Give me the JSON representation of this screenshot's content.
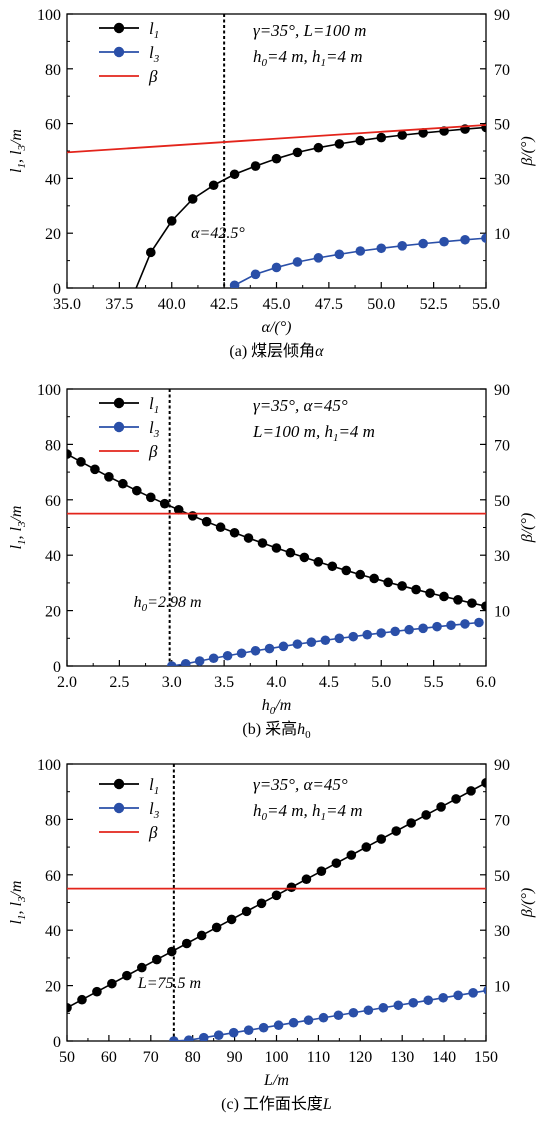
{
  "chart_data": [
    {
      "type": "line",
      "caption_prefix": "(a) 煤层倾角",
      "caption_var": "α",
      "xlabel": "α/(°)",
      "ylabel_left": "l1, l3/m",
      "ylabel_right": "β/(°)",
      "xlim": [
        35,
        55
      ],
      "ylim_left": [
        0,
        100
      ],
      "ylim_right": [
        -10,
        90
      ],
      "xticks": [
        "35.0",
        "37.5",
        "40.0",
        "42.5",
        "45.0",
        "47.5",
        "50.0",
        "52.5",
        "55.0"
      ],
      "yticks_left": [
        "0",
        "20",
        "40",
        "60",
        "80",
        "100"
      ],
      "yticks_right": [
        "10",
        "30",
        "50",
        "70",
        "90"
      ],
      "legend": [
        "l1",
        "l3",
        "β"
      ],
      "params": [
        "γ=35°, L=100 m",
        "h0=4 m, h1=4 m"
      ],
      "vline": {
        "x": 42.5,
        "label": "α=42.5°"
      },
      "series": [
        {
          "name": "l1",
          "color": "#000000",
          "x_start": 39.0,
          "x_step": 1.0,
          "values": [
            13.0,
            24.5,
            32.5,
            37.5,
            41.5,
            44.5,
            47.2,
            49.5,
            51.2,
            52.6,
            53.8,
            54.9,
            55.8,
            56.6,
            57.3,
            58.0,
            58.6
          ]
        },
        {
          "name": "l3",
          "color": "#2a4fa8",
          "x_start": 43.0,
          "x_step": 1.0,
          "values": [
            1.0,
            5.0,
            7.5,
            9.5,
            11.0,
            12.3,
            13.5,
            14.5,
            15.4,
            16.2,
            16.9,
            17.6,
            18.2
          ]
        },
        {
          "name": "β",
          "color": "#e3241b",
          "x": [
            35,
            55
          ],
          "values": [
            39.5,
            49.5
          ]
        }
      ],
      "l1_origin": {
        "x": 38.3,
        "y": 0
      }
    },
    {
      "type": "line",
      "caption_prefix": "(b) 采高",
      "caption_var": "h0",
      "xlabel": "h0/m",
      "ylabel_left": "l1, l3/m",
      "ylabel_right": "β/(°)",
      "xlim": [
        2,
        6
      ],
      "ylim_left": [
        0,
        100
      ],
      "ylim_right": [
        -10,
        90
      ],
      "xticks": [
        "2.0",
        "2.5",
        "3.0",
        "3.5",
        "4.0",
        "4.5",
        "5.0",
        "5.5",
        "6.0"
      ],
      "yticks_left": [
        "0",
        "20",
        "40",
        "60",
        "80",
        "100"
      ],
      "yticks_right": [
        "10",
        "30",
        "50",
        "70",
        "90"
      ],
      "legend": [
        "l1",
        "l3",
        "β"
      ],
      "params": [
        "γ=35°, α=45°",
        "L=100 m, h1=4 m"
      ],
      "vline": {
        "x": 2.98,
        "label": "h0=2.98 m"
      },
      "series": [
        {
          "name": "l1",
          "color": "#000000",
          "x_start": 2.0,
          "x_step": 0.1333,
          "values": [
            76.5,
            73.7,
            71.0,
            68.3,
            65.8,
            63.3,
            60.9,
            58.6,
            56.4,
            54.2,
            52.1,
            50.1,
            48.1,
            46.2,
            44.4,
            42.6,
            40.9,
            39.2,
            37.6,
            36.0,
            34.5,
            33.0,
            31.6,
            30.2,
            28.9,
            27.6,
            26.3,
            25.1,
            23.9,
            22.7,
            21.6
          ]
        },
        {
          "name": "l3",
          "color": "#2a4fa8",
          "x_start": 3.0,
          "x_step": 0.1333,
          "values": [
            0.0,
            0.8,
            1.8,
            2.8,
            3.7,
            4.6,
            5.5,
            6.3,
            7.1,
            7.9,
            8.6,
            9.3,
            10.0,
            10.6,
            11.3,
            11.9,
            12.5,
            13.1,
            13.6,
            14.2,
            14.7,
            15.2,
            15.7
          ]
        },
        {
          "name": "β",
          "color": "#e3241b",
          "x": [
            2,
            6
          ],
          "values": [
            45,
            45
          ]
        }
      ]
    },
    {
      "type": "line",
      "caption_prefix": "(c) 工作面长度",
      "caption_var": "L",
      "xlabel": "L/m",
      "ylabel_left": "l1, l3/m",
      "ylabel_right": "β/(°)",
      "xlim": [
        50,
        150
      ],
      "ylim_left": [
        0,
        100
      ],
      "ylim_right": [
        -10,
        90
      ],
      "xticks": [
        "50",
        "60",
        "70",
        "80",
        "90",
        "100",
        "110",
        "120",
        "130",
        "140",
        "150"
      ],
      "yticks_left": [
        "0",
        "20",
        "40",
        "60",
        "80",
        "100"
      ],
      "yticks_right": [
        "10",
        "30",
        "50",
        "70",
        "90"
      ],
      "legend": [
        "l1",
        "l3",
        "β"
      ],
      "params": [
        "γ=35°, α=45°",
        "h0=4 m, h1=4 m"
      ],
      "vline": {
        "x": 75.5,
        "label": "L=75.5 m"
      },
      "series": [
        {
          "name": "l1",
          "color": "#000000",
          "x_start": 50,
          "x_step": 3.5714,
          "values": [
            12.0,
            14.9,
            17.8,
            20.7,
            23.6,
            26.5,
            29.4,
            32.3,
            35.2,
            38.1,
            41.0,
            43.9,
            46.8,
            49.7,
            52.6,
            55.5,
            58.4,
            61.3,
            64.2,
            67.1,
            70.0,
            72.9,
            75.8,
            78.7,
            81.6,
            84.5,
            87.4,
            90.3,
            93.2
          ]
        },
        {
          "name": "l3",
          "color": "#2a4fa8",
          "x_start": 75.5,
          "x_step": 3.5714,
          "values": [
            0.0,
            0.3,
            1.2,
            2.1,
            3.0,
            3.9,
            4.8,
            5.7,
            6.6,
            7.5,
            8.4,
            9.3,
            10.2,
            11.1,
            12.0,
            12.9,
            13.8,
            14.7,
            15.6,
            16.5,
            17.4,
            18.3
          ]
        },
        {
          "name": "β",
          "color": "#e3241b",
          "x": [
            50,
            150
          ],
          "values": [
            45,
            45
          ]
        }
      ]
    }
  ]
}
